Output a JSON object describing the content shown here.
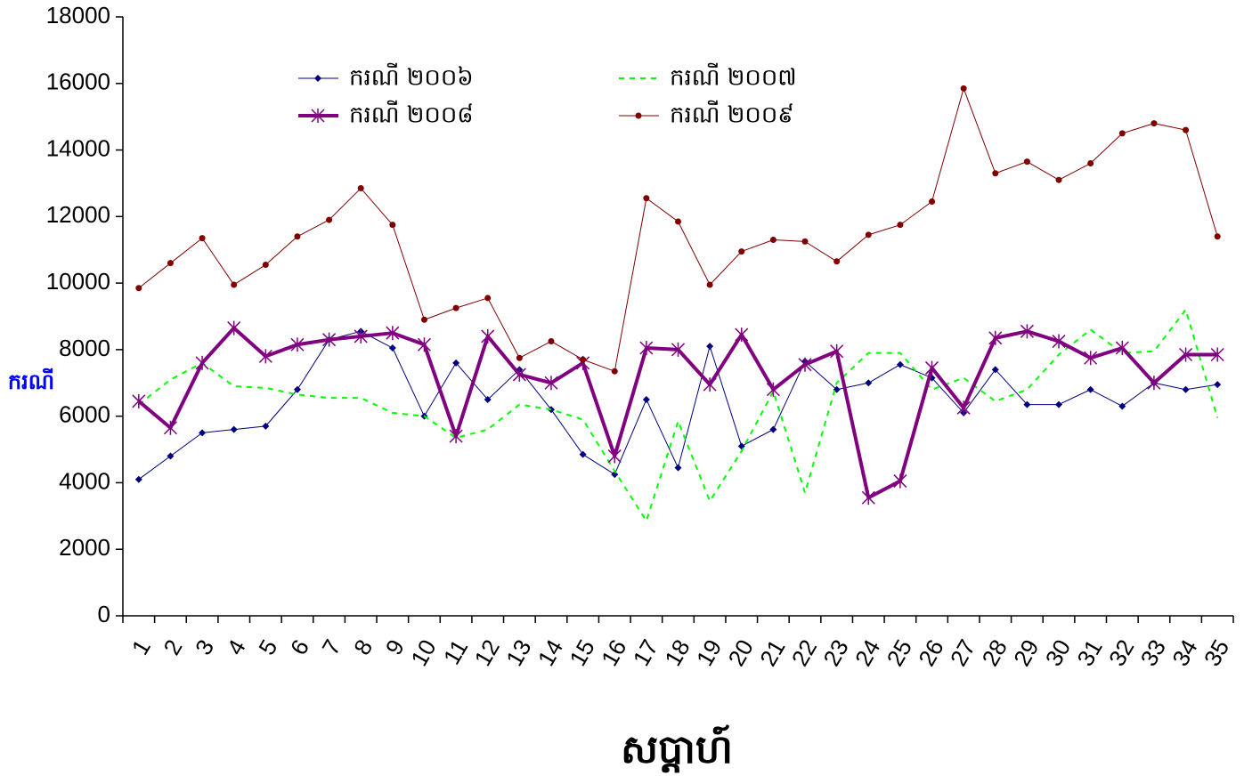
{
  "chart_data": {
    "type": "line",
    "x_label": "សប្តាហ៍",
    "y_label": "ករណី",
    "categories": [
      "1",
      "2",
      "3",
      "4",
      "5",
      "6",
      "7",
      "8",
      "9",
      "10",
      "11",
      "12",
      "13",
      "14",
      "15",
      "16",
      "17",
      "18",
      "19",
      "20",
      "21",
      "22",
      "23",
      "24",
      "25",
      "26",
      "27",
      "28",
      "29",
      "30",
      "31",
      "32",
      "33",
      "34",
      "35"
    ],
    "ylim": [
      0,
      18000
    ],
    "yticks": [
      0,
      2000,
      4000,
      6000,
      8000,
      10000,
      12000,
      14000,
      16000,
      18000
    ],
    "legend": "top-left",
    "series": [
      {
        "name": "ករណី ២០០៦",
        "color": "#000080",
        "marker": "diamond",
        "dash": false,
        "width": 1,
        "values": [
          4100,
          4800,
          5500,
          5600,
          5700,
          6800,
          8300,
          8550,
          8050,
          6000,
          7600,
          6500,
          7400,
          6200,
          4850,
          4250,
          6500,
          4450,
          8100,
          5100,
          5600,
          7650,
          6800,
          7000,
          7550,
          7150,
          6100,
          7400,
          6350,
          6350,
          6800,
          6300,
          7000,
          6800,
          6950
        ]
      },
      {
        "name": "ករណី ២០០៧",
        "color": "#00ff00",
        "marker": "none",
        "dash": true,
        "width": 2,
        "values": [
          6350,
          7100,
          7600,
          6900,
          6850,
          6650,
          6550,
          6550,
          6100,
          6000,
          5350,
          5600,
          6350,
          6200,
          5900,
          4350,
          2850,
          5850,
          3450,
          4950,
          6750,
          3700,
          7000,
          7900,
          7900,
          6800,
          7150,
          6450,
          6800,
          7850,
          8600,
          7900,
          7950,
          9200,
          5950
        ]
      },
      {
        "name": "ករណី ២០០៨",
        "color": "#800080",
        "marker": "asterisk",
        "dash": false,
        "width": 4,
        "values": [
          6450,
          5650,
          7600,
          8650,
          7800,
          8150,
          8300,
          8400,
          8500,
          8150,
          5400,
          8400,
          7250,
          7000,
          7600,
          4800,
          8050,
          8000,
          6950,
          8450,
          6800,
          7550,
          7950,
          3550,
          4050,
          7450,
          6250,
          8350,
          8550,
          8250,
          7750,
          8050,
          7000,
          7850,
          7850
        ]
      },
      {
        "name": "ករណី ២០០៩",
        "color": "#800000",
        "marker": "circle",
        "dash": false,
        "width": 1,
        "values": [
          9850,
          10600,
          11350,
          9950,
          10550,
          11400,
          11900,
          12850,
          11750,
          8900,
          9250,
          9550,
          7750,
          8250,
          7700,
          7350,
          12550,
          11850,
          9950,
          10950,
          11300,
          11250,
          10650,
          11450,
          11750,
          12450,
          15850,
          13300,
          13650,
          13100,
          13600,
          14500,
          14800,
          14600,
          11400
        ]
      }
    ]
  }
}
